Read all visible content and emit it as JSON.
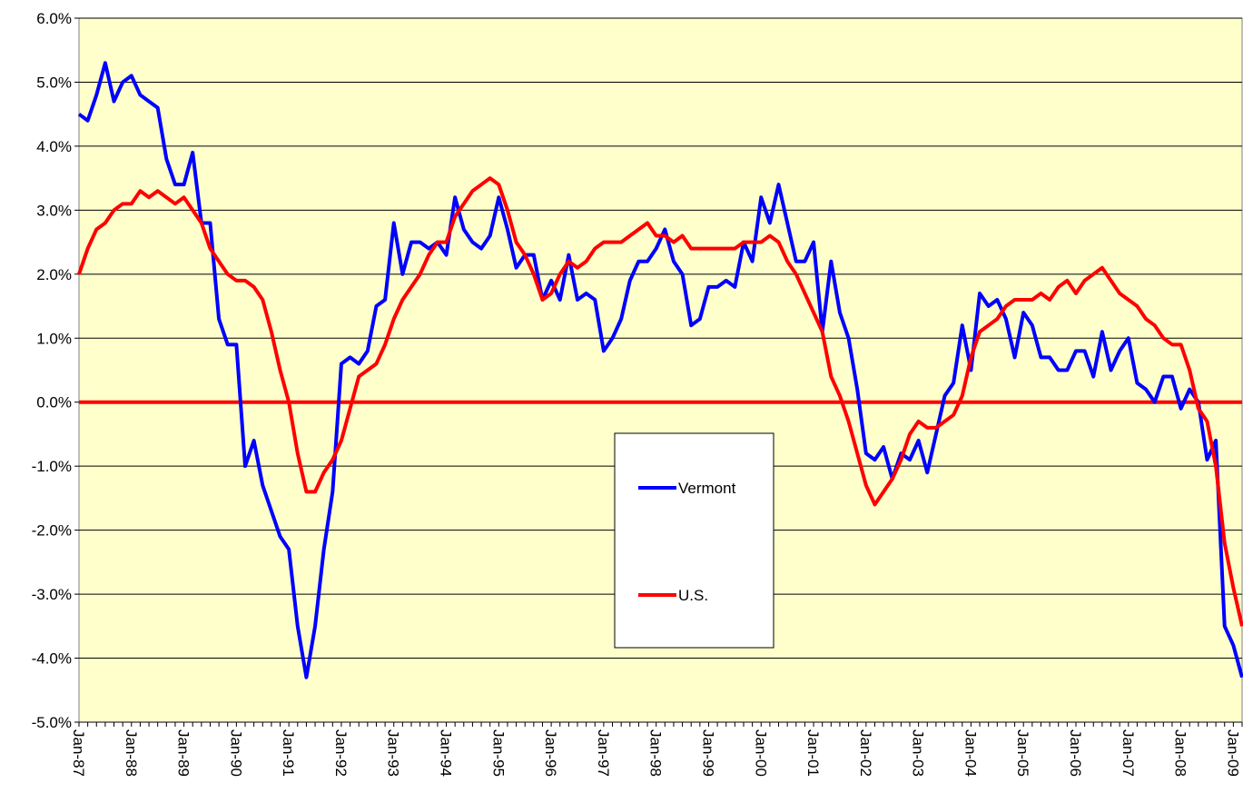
{
  "chart_data": {
    "type": "line",
    "categories": [
      "Jan-87",
      null,
      null,
      null,
      null,
      null,
      "Jan-88",
      null,
      null,
      null,
      null,
      null,
      "Jan-89",
      null,
      null,
      null,
      null,
      null,
      "Jan-90",
      null,
      null,
      null,
      null,
      null,
      "Jan-91",
      null,
      null,
      null,
      null,
      null,
      "Jan-92",
      null,
      null,
      null,
      null,
      null,
      "Jan-93",
      null,
      null,
      null,
      null,
      null,
      "Jan-94",
      null,
      null,
      null,
      null,
      null,
      "Jan-95",
      null,
      null,
      null,
      null,
      null,
      "Jan-96",
      null,
      null,
      null,
      null,
      null,
      "Jan-97",
      null,
      null,
      null,
      null,
      null,
      "Jan-98",
      null,
      null,
      null,
      null,
      null,
      "Jan-99",
      null,
      null,
      null,
      null,
      null,
      "Jan-00",
      null,
      null,
      null,
      null,
      null,
      "Jan-01",
      null,
      null,
      null,
      null,
      null,
      "Jan-02",
      null,
      null,
      null,
      null,
      null,
      "Jan-03",
      null,
      null,
      null,
      null,
      null,
      "Jan-04",
      null,
      null,
      null,
      null,
      null,
      "Jan-05",
      null,
      null,
      null,
      null,
      null,
      "Jan-06",
      null,
      null,
      null,
      null,
      null,
      "Jan-07",
      null,
      null,
      null,
      null,
      null,
      "Jan-08",
      null,
      null,
      null,
      null,
      null,
      "Jan-09",
      null
    ],
    "series": [
      {
        "name": "Vermont",
        "color": "#0000ff",
        "values": [
          4.5,
          4.4,
          4.8,
          5.3,
          4.7,
          5.0,
          5.1,
          4.8,
          4.7,
          4.6,
          3.8,
          3.4,
          3.4,
          3.9,
          2.8,
          2.8,
          1.3,
          0.9,
          0.9,
          -1.0,
          -0.6,
          -1.3,
          -1.7,
          -2.1,
          -2.3,
          -3.5,
          -4.3,
          -3.5,
          -2.3,
          -1.4,
          0.6,
          0.7,
          0.6,
          0.8,
          1.5,
          1.6,
          2.8,
          2.0,
          2.5,
          2.5,
          2.4,
          2.5,
          2.3,
          3.2,
          2.7,
          2.5,
          2.4,
          2.6,
          3.2,
          2.7,
          2.1,
          2.3,
          2.3,
          1.6,
          1.9,
          1.6,
          2.3,
          1.6,
          1.7,
          1.6,
          0.8,
          1.0,
          1.3,
          1.9,
          2.2,
          2.2,
          2.4,
          2.7,
          2.2,
          2.0,
          1.2,
          1.3,
          1.8,
          1.8,
          1.9,
          1.8,
          2.5,
          2.2,
          3.2,
          2.8,
          3.4,
          2.8,
          2.2,
          2.2,
          2.5,
          1.1,
          2.2,
          1.4,
          1.0,
          0.2,
          -0.8,
          -0.9,
          -0.7,
          -1.2,
          -0.8,
          -0.9,
          -0.6,
          -1.1,
          -0.5,
          0.1,
          0.3,
          1.2,
          0.5,
          1.7,
          1.5,
          1.6,
          1.3,
          0.7,
          1.4,
          1.2,
          0.7,
          0.7,
          0.5,
          0.5,
          0.8,
          0.8,
          0.4,
          1.1,
          0.5,
          0.8,
          1.0,
          0.3,
          0.2,
          0.0,
          0.4,
          0.4,
          -0.1,
          0.2,
          0.0,
          -0.9,
          -0.6,
          -3.5,
          -3.8,
          -4.3
        ]
      },
      {
        "name": "U.S.",
        "color": "#ff0000",
        "values": [
          2.0,
          2.4,
          2.7,
          2.8,
          3.0,
          3.1,
          3.1,
          3.3,
          3.2,
          3.3,
          3.2,
          3.1,
          3.2,
          3.0,
          2.8,
          2.4,
          2.2,
          2.0,
          1.9,
          1.9,
          1.8,
          1.6,
          1.1,
          0.5,
          0.0,
          -0.8,
          -1.4,
          -1.4,
          -1.1,
          -0.9,
          -0.6,
          -0.1,
          0.4,
          0.5,
          0.6,
          0.9,
          1.3,
          1.6,
          1.8,
          2.0,
          2.3,
          2.5,
          2.5,
          2.9,
          3.1,
          3.3,
          3.4,
          3.5,
          3.4,
          3.0,
          2.5,
          2.3,
          2.0,
          1.6,
          1.7,
          2.0,
          2.2,
          2.1,
          2.2,
          2.4,
          2.5,
          2.5,
          2.5,
          2.6,
          2.7,
          2.8,
          2.6,
          2.6,
          2.5,
          2.6,
          2.4,
          2.4,
          2.4,
          2.4,
          2.4,
          2.4,
          2.5,
          2.5,
          2.5,
          2.6,
          2.5,
          2.2,
          2.0,
          1.7,
          1.4,
          1.1,
          0.4,
          0.1,
          -0.3,
          -0.8,
          -1.3,
          -1.6,
          -1.4,
          -1.2,
          -0.9,
          -0.5,
          -0.3,
          -0.4,
          -0.4,
          -0.3,
          -0.2,
          0.1,
          0.7,
          1.1,
          1.2,
          1.3,
          1.5,
          1.6,
          1.6,
          1.6,
          1.7,
          1.6,
          1.8,
          1.9,
          1.7,
          1.9,
          2.0,
          2.1,
          1.9,
          1.7,
          1.6,
          1.5,
          1.3,
          1.2,
          1.0,
          0.9,
          0.9,
          0.5,
          -0.1,
          -0.3,
          -1.0,
          -2.2,
          -2.9,
          -3.5
        ]
      }
    ],
    "ylim": [
      -5,
      6
    ],
    "yticks": [
      {
        "value": -5,
        "label": "-5.0%"
      },
      {
        "value": -4,
        "label": "-4.0%"
      },
      {
        "value": -3,
        "label": "-3.0%"
      },
      {
        "value": -2,
        "label": "-2.0%"
      },
      {
        "value": -1,
        "label": "-1.0%"
      },
      {
        "value": 0,
        "label": "0.0%"
      },
      {
        "value": 1,
        "label": "1.0%"
      },
      {
        "value": 2,
        "label": "2.0%"
      },
      {
        "value": 3,
        "label": "3.0%"
      },
      {
        "value": 4,
        "label": "4.0%"
      },
      {
        "value": 5,
        "label": "5.0%"
      },
      {
        "value": 6,
        "label": "6.0%"
      }
    ],
    "grid": true
  }
}
